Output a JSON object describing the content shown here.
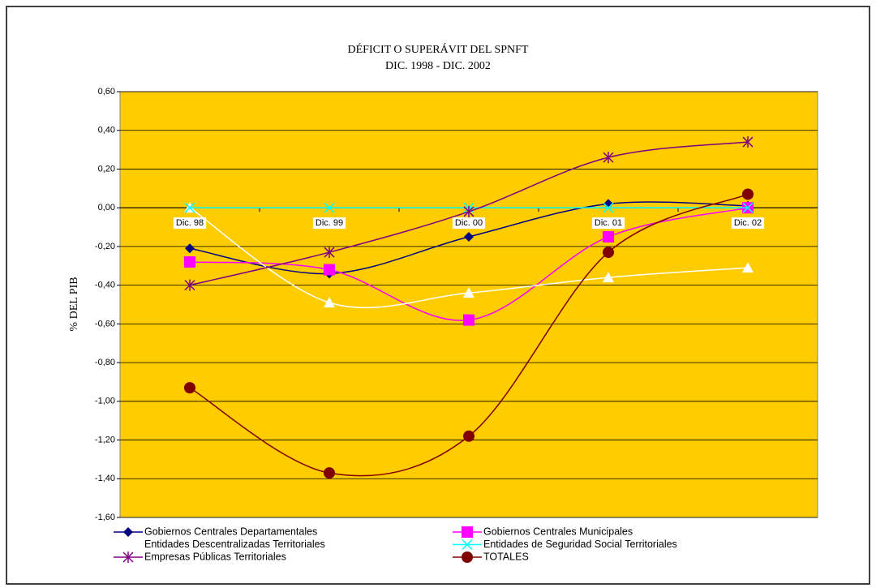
{
  "chart_data": {
    "type": "line",
    "title": "DÉFICIT O SUPERÁVIT DEL SPNFT",
    "subtitle": "DIC. 1998 - DIC. 2002",
    "y_label": "% DEL PIB",
    "categories": [
      "Dic. 98",
      "Dic. 99",
      "Dic. 00",
      "Dic. 01",
      "Dic. 02"
    ],
    "series": [
      {
        "name": "Gobiernos Centrales Departamentales",
        "color": "#000080",
        "marker": "diamond",
        "values": [
          -0.21,
          -0.34,
          -0.15,
          0.02,
          0.01
        ]
      },
      {
        "name": "Gobiernos Centrales Municipales",
        "color": "#FF00FF",
        "marker": "square",
        "values": [
          -0.28,
          -0.32,
          -0.58,
          -0.15,
          0.0
        ]
      },
      {
        "name": "Entidades Descentralizadas Territoriales",
        "color": "#FFFFFF",
        "marker": "triangle",
        "values": [
          0.0,
          -0.49,
          -0.44,
          -0.36,
          -0.31
        ]
      },
      {
        "name": "Entidades de Seguridad Social Territoriales",
        "color": "#00FFFF",
        "marker": "x",
        "values": [
          0.0,
          0.0,
          0.0,
          0.0,
          0.0
        ]
      },
      {
        "name": "Empresas Públicas Territoriales",
        "color": "#800080",
        "marker": "asterisk",
        "values": [
          -0.4,
          -0.23,
          -0.02,
          0.26,
          0.34
        ]
      },
      {
        "name": "TOTALES",
        "color": "#800000",
        "marker": "circle",
        "values": [
          -0.93,
          -1.37,
          -1.18,
          -0.23,
          0.07
        ]
      }
    ],
    "ylim": [
      -1.6,
      0.6
    ],
    "yticks": [
      {
        "value": -1.6,
        "label": "-1,60"
      },
      {
        "value": -1.4,
        "label": "-1,40"
      },
      {
        "value": -1.2,
        "label": "-1,20"
      },
      {
        "value": -1.0,
        "label": "-1,00"
      },
      {
        "value": -0.8,
        "label": "-0,80"
      },
      {
        "value": -0.6,
        "label": "-0,60"
      },
      {
        "value": -0.4,
        "label": "-0,40"
      },
      {
        "value": -0.2,
        "label": "-0,20"
      },
      {
        "value": 0,
        "label": "0,00"
      },
      {
        "value": 0.2,
        "label": "0,20"
      },
      {
        "value": 0.4,
        "label": "0,40"
      },
      {
        "value": 0.6,
        "label": "0,60"
      }
    ],
    "grid": true,
    "smooth": true,
    "plot_background": "#FFCC00",
    "legend": "bottom"
  }
}
